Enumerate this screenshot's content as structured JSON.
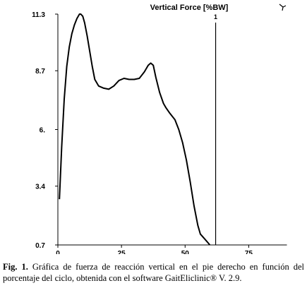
{
  "chart_data": {
    "type": "line",
    "title": "Vertical Force [%BW]",
    "xlabel": "",
    "ylabel": "",
    "xlim": [
      0,
      90
    ],
    "ylim": [
      0.7,
      11.3
    ],
    "x_ticks": [
      0,
      25,
      50,
      75
    ],
    "x_tick_labels": [
      "0",
      "25",
      "50",
      "75"
    ],
    "y_ticks": [
      0.7,
      3.4,
      6.0,
      8.7,
      11.3
    ],
    "y_tick_labels": [
      "0.7",
      "3.4",
      "6.",
      "8.7",
      "11.3"
    ],
    "grid": false,
    "series": [
      {
        "name": "",
        "color": "#000000",
        "x": [
          0.6,
          1.5,
          2.5,
          3.5,
          4.5,
          5.5,
          6.5,
          7.5,
          8.5,
          9.0,
          9.8,
          10.5,
          11.5,
          12.5,
          13.5,
          14.5,
          16.0,
          18.0,
          20.0,
          22.0,
          24.0,
          26.0,
          28.0,
          30.0,
          32.0,
          34.0,
          35.5,
          36.5,
          37.5,
          38.5,
          40.0,
          41.5,
          42.5,
          44.0,
          46.0,
          47.5,
          49.0,
          50.5,
          52.0,
          53.5,
          55.0,
          56.0,
          57.5,
          59.0,
          59.7
        ],
        "y": [
          2.8,
          5.2,
          7.4,
          8.9,
          9.8,
          10.4,
          10.8,
          11.1,
          11.3,
          11.3,
          11.2,
          10.9,
          10.3,
          9.6,
          8.9,
          8.3,
          8.0,
          7.9,
          7.85,
          8.0,
          8.25,
          8.35,
          8.3,
          8.3,
          8.35,
          8.65,
          8.95,
          9.05,
          8.95,
          8.4,
          7.7,
          7.2,
          7.0,
          6.75,
          6.45,
          6.0,
          5.4,
          4.6,
          3.6,
          2.5,
          1.6,
          1.2,
          1.0,
          0.8,
          0.7
        ]
      }
    ],
    "markers": [
      {
        "x": 62,
        "label": "1"
      }
    ]
  },
  "caption": {
    "label": "Fig. 1.",
    "text": " Gráfica de fuerza de reacción vertical en el pie derecho en función del porcentaje del ciclo, obtenida con el software GaitEliclinic® V. 2.9."
  }
}
